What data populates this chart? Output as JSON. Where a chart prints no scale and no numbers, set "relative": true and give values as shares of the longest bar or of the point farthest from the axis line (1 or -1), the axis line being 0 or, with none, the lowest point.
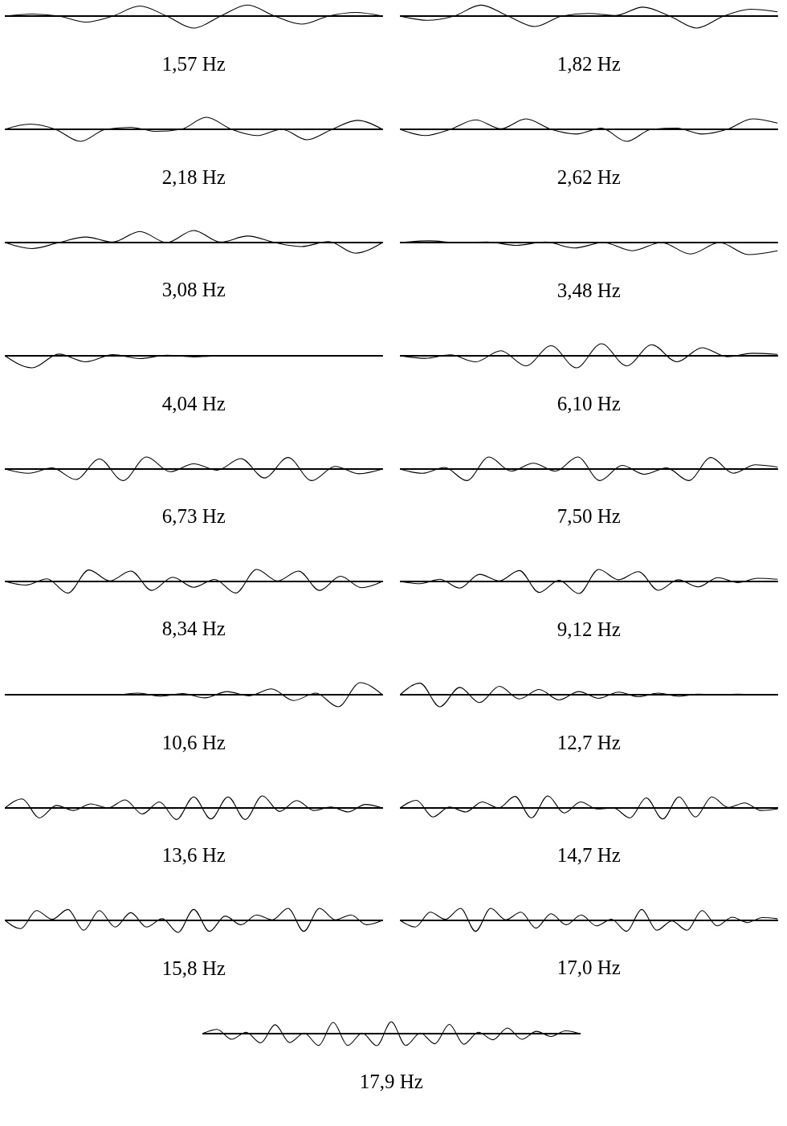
{
  "chart_data": [
    {
      "type": "line",
      "title": "1,57 Hz",
      "relative": true,
      "color": "#000000",
      "categories": [
        null,
        null,
        null,
        null,
        null,
        null,
        null,
        null,
        null,
        null,
        null,
        null,
        null,
        null,
        null
      ],
      "values": [
        0,
        0.17,
        0,
        -0.5,
        0,
        0.83,
        0,
        -1,
        0,
        0.92,
        0,
        -0.67,
        0,
        0.3,
        0
      ]
    },
    {
      "type": "line",
      "title": "1,82 Hz",
      "relative": true,
      "color": "#000000",
      "categories": [
        null,
        null,
        null,
        null,
        null,
        null,
        null,
        null,
        null,
        null,
        null,
        null,
        null,
        null,
        null
      ],
      "values": [
        0,
        -0.35,
        0,
        0.91,
        0,
        -0.87,
        0,
        0.22,
        0.05,
        0.74,
        0,
        -1,
        0,
        0.57,
        0.35
      ]
    },
    {
      "type": "line",
      "title": "2,18 Hz",
      "relative": true,
      "color": "#000000",
      "categories": [
        null,
        null,
        null,
        null,
        null,
        null,
        null,
        null,
        null,
        null,
        null,
        null,
        null,
        null,
        null,
        null
      ],
      "values": [
        0,
        0.43,
        0,
        -1,
        0,
        0.17,
        -0.17,
        0,
        1,
        0,
        -0.52,
        0,
        -0.87,
        0,
        0.74,
        0
      ]
    },
    {
      "type": "line",
      "title": "2,62 Hz",
      "relative": true,
      "color": "#000000",
      "categories": [
        null,
        null,
        null,
        null,
        null,
        null,
        null,
        null,
        null,
        null,
        null,
        null,
        null,
        null,
        null,
        null
      ],
      "values": [
        0,
        -0.52,
        0,
        0.78,
        0.04,
        0.87,
        0,
        -0.39,
        0.09,
        -1,
        0,
        0.09,
        -0.39,
        0,
        0.87,
        0.52
      ]
    },
    {
      "type": "line",
      "title": "3,08 Hz",
      "relative": true,
      "color": "#000000",
      "categories": [
        null,
        null,
        null,
        null,
        null,
        null,
        null,
        null,
        null,
        null,
        null,
        null,
        null,
        null,
        null
      ],
      "values": [
        0,
        -0.5,
        0,
        0.46,
        0.04,
        0.92,
        0,
        1,
        0.04,
        0.54,
        0,
        -0.33,
        0.08,
        -0.88,
        0
      ]
    },
    {
      "type": "line",
      "title": "3,48 Hz",
      "relative": true,
      "color": "#000000",
      "categories": [
        null,
        null,
        null,
        null,
        null,
        null,
        null,
        null,
        null,
        null,
        null,
        null,
        null,
        null
      ],
      "values": [
        0,
        0.14,
        0,
        0.05,
        -0.23,
        0.05,
        -0.45,
        0,
        -0.68,
        0,
        -0.95,
        0,
        -1,
        -0.68
      ]
    },
    {
      "type": "line",
      "title": "4,04 Hz",
      "relative": true,
      "color": "#000000",
      "categories": [
        null,
        null,
        null,
        null,
        null,
        null,
        null,
        null,
        null,
        null,
        null,
        null,
        null,
        null,
        null
      ],
      "values": [
        0,
        -1,
        0.14,
        -0.5,
        0.09,
        -0.23,
        0.05,
        -0.09,
        0,
        0,
        0,
        0,
        0,
        0,
        0
      ]
    },
    {
      "type": "line",
      "title": "6,10 Hz",
      "relative": true,
      "color": "#000000",
      "categories": [
        null,
        null,
        null,
        null,
        null,
        null,
        null,
        null,
        null,
        null,
        null,
        null,
        null,
        null,
        null,
        null
      ],
      "values": [
        0,
        -0.21,
        0.08,
        -0.5,
        0.42,
        -0.83,
        0.83,
        -1,
        1,
        -0.83,
        0.92,
        -0.5,
        0.67,
        -0.08,
        0.21,
        0.12
      ]
    },
    {
      "type": "line",
      "title": "6,73 Hz",
      "relative": true,
      "color": "#000000",
      "categories": [
        null,
        null,
        null,
        null,
        null,
        null,
        null,
        null,
        null,
        null,
        null,
        null,
        null,
        null,
        null,
        null,
        null
      ],
      "values": [
        0,
        -0.35,
        0.09,
        -0.87,
        0.83,
        -0.96,
        1,
        -0.22,
        0.43,
        -0.09,
        0.87,
        -0.74,
        0.96,
        -0.96,
        0.22,
        -0.39,
        0
      ]
    },
    {
      "type": "line",
      "title": "7,50 Hz",
      "relative": true,
      "color": "#000000",
      "categories": [
        null,
        null,
        null,
        null,
        null,
        null,
        null,
        null,
        null,
        null,
        null,
        null,
        null,
        null,
        null,
        null,
        null,
        null
      ],
      "values": [
        0,
        -0.35,
        0.13,
        -0.96,
        1,
        -0.17,
        0.48,
        -0.17,
        1,
        -0.96,
        0.3,
        -0.43,
        0.09,
        -0.96,
        0.96,
        -0.35,
        0.35,
        0.17
      ]
    },
    {
      "type": "line",
      "title": "8,34 Hz",
      "relative": true,
      "color": "#000000",
      "categories": [
        null,
        null,
        null,
        null,
        null,
        null,
        null,
        null,
        null,
        null,
        null,
        null,
        null,
        null,
        null,
        null,
        null,
        null,
        null
      ],
      "values": [
        0,
        -0.3,
        0.22,
        -0.96,
        0.96,
        0.04,
        0.87,
        -0.74,
        0.35,
        -0.48,
        0.17,
        -0.96,
        1,
        0.04,
        0.87,
        -0.74,
        0.43,
        -0.52,
        0
      ]
    },
    {
      "type": "line",
      "title": "9,12 Hz",
      "relative": true,
      "color": "#000000",
      "categories": [
        null,
        null,
        null,
        null,
        null,
        null,
        null,
        null,
        null,
        null,
        null,
        null,
        null,
        null,
        null,
        null,
        null,
        null,
        null,
        null
      ],
      "values": [
        0,
        -0.18,
        0.18,
        -0.55,
        0.59,
        0.05,
        0.91,
        -0.91,
        0.09,
        -1,
        1,
        0.14,
        0.82,
        -0.73,
        0.14,
        -0.45,
        0.32,
        -0.09,
        0.27,
        0.18
      ]
    },
    {
      "type": "line",
      "title": "10,6 Hz",
      "relative": true,
      "color": "#000000",
      "categories": [
        null,
        null,
        null,
        null,
        null,
        null,
        null,
        null,
        null,
        null,
        null,
        null,
        null,
        null,
        null,
        null,
        null,
        null
      ],
      "values": [
        0,
        0,
        0,
        0,
        0,
        0,
        0.13,
        -0.13,
        0.09,
        -0.26,
        0.26,
        -0.09,
        0.48,
        -0.48,
        0.13,
        -1,
        1,
        0
      ]
    },
    {
      "type": "line",
      "title": "12,7 Hz",
      "relative": true,
      "color": "#000000",
      "categories": [
        null,
        null,
        null,
        null,
        null,
        null,
        null,
        null,
        null,
        null,
        null,
        null,
        null,
        null,
        null,
        null,
        null,
        null,
        null,
        null
      ],
      "values": [
        0,
        0.96,
        -1,
        0.61,
        -0.65,
        0.7,
        -0.35,
        0.43,
        -0.43,
        0.26,
        -0.3,
        0.22,
        -0.17,
        0.13,
        -0.13,
        0.04,
        0,
        0.04,
        0,
        0
      ]
    },
    {
      "type": "line",
      "title": "13,6 Hz",
      "relative": true,
      "color": "#000000",
      "categories": [
        null,
        null,
        null,
        null,
        null,
        null,
        null,
        null,
        null,
        null,
        null,
        null,
        null,
        null,
        null,
        null,
        null,
        null,
        null,
        null,
        null,
        null,
        null
      ],
      "values": [
        0,
        0.75,
        -0.83,
        0.21,
        -0.21,
        0.33,
        0,
        0.67,
        -0.5,
        0.5,
        -0.96,
        0.92,
        -0.92,
        0.92,
        -0.96,
        1,
        -0.29,
        0.62,
        -0.21,
        0.08,
        -0.33,
        0.29,
        0
      ]
    },
    {
      "type": "line",
      "title": "14,7 Hz",
      "relative": true,
      "color": "#000000",
      "categories": [
        null,
        null,
        null,
        null,
        null,
        null,
        null,
        null,
        null,
        null,
        null,
        null,
        null,
        null,
        null,
        null,
        null,
        null,
        null,
        null,
        null,
        null,
        null,
        null
      ],
      "values": [
        0,
        0.63,
        -0.75,
        0.08,
        -0.33,
        0.5,
        0,
        0.96,
        -0.83,
        1,
        -0.42,
        0.5,
        -0.08,
        0,
        -0.83,
        0.83,
        -0.92,
        0.92,
        -0.75,
        0.92,
        0.04,
        0.42,
        -0.21,
        -0.08
      ]
    },
    {
      "type": "line",
      "title": "15,8 Hz",
      "relative": true,
      "color": "#000000",
      "categories": [
        null,
        null,
        null,
        null,
        null,
        null,
        null,
        null,
        null,
        null,
        null,
        null,
        null,
        null,
        null,
        null,
        null,
        null,
        null,
        null,
        null,
        null,
        null,
        null,
        null
      ],
      "values": [
        0,
        -0.68,
        0.82,
        0.09,
        0.91,
        -0.82,
        0.82,
        -0.55,
        0.64,
        -0.55,
        0.14,
        -1,
        0.91,
        -0.91,
        0.36,
        -0.36,
        0.45,
        0.05,
        1,
        -0.91,
        1,
        0.05,
        0.45,
        -0.36,
        0
      ]
    },
    {
      "type": "line",
      "title": "17,0 Hz",
      "relative": true,
      "color": "#000000",
      "categories": [
        null,
        null,
        null,
        null,
        null,
        null,
        null,
        null,
        null,
        null,
        null,
        null,
        null,
        null,
        null,
        null,
        null,
        null,
        null,
        null,
        null,
        null,
        null,
        null,
        null,
        null
      ],
      "values": [
        0,
        -0.55,
        0.68,
        0.09,
        1,
        -0.91,
        1,
        0.05,
        0.68,
        -0.64,
        0.55,
        -0.36,
        0.45,
        -0.45,
        0.09,
        -0.91,
        0.91,
        -0.82,
        -0.05,
        -0.82,
        0.82,
        -0.45,
        0.27,
        -0.18,
        0.23,
        0.14
      ]
    },
    {
      "type": "line",
      "title": "17,9 Hz",
      "relative": true,
      "color": "#000000",
      "categories": [
        null,
        null,
        null,
        null,
        null,
        null,
        null,
        null,
        null,
        null,
        null,
        null,
        null,
        null,
        null,
        null,
        null,
        null,
        null,
        null,
        null,
        null,
        null,
        null,
        null,
        null,
        null
      ],
      "values": [
        0,
        0.35,
        -0.47,
        0.12,
        -0.77,
        0.74,
        -0.74,
        0.05,
        -0.98,
        0.93,
        -0.98,
        0.05,
        -1,
        0.98,
        -0.98,
        0.05,
        -0.84,
        0.77,
        -0.88,
        0.12,
        -0.51,
        0.47,
        -0.47,
        0.19,
        -0.23,
        0.23,
        0
      ]
    }
  ]
}
